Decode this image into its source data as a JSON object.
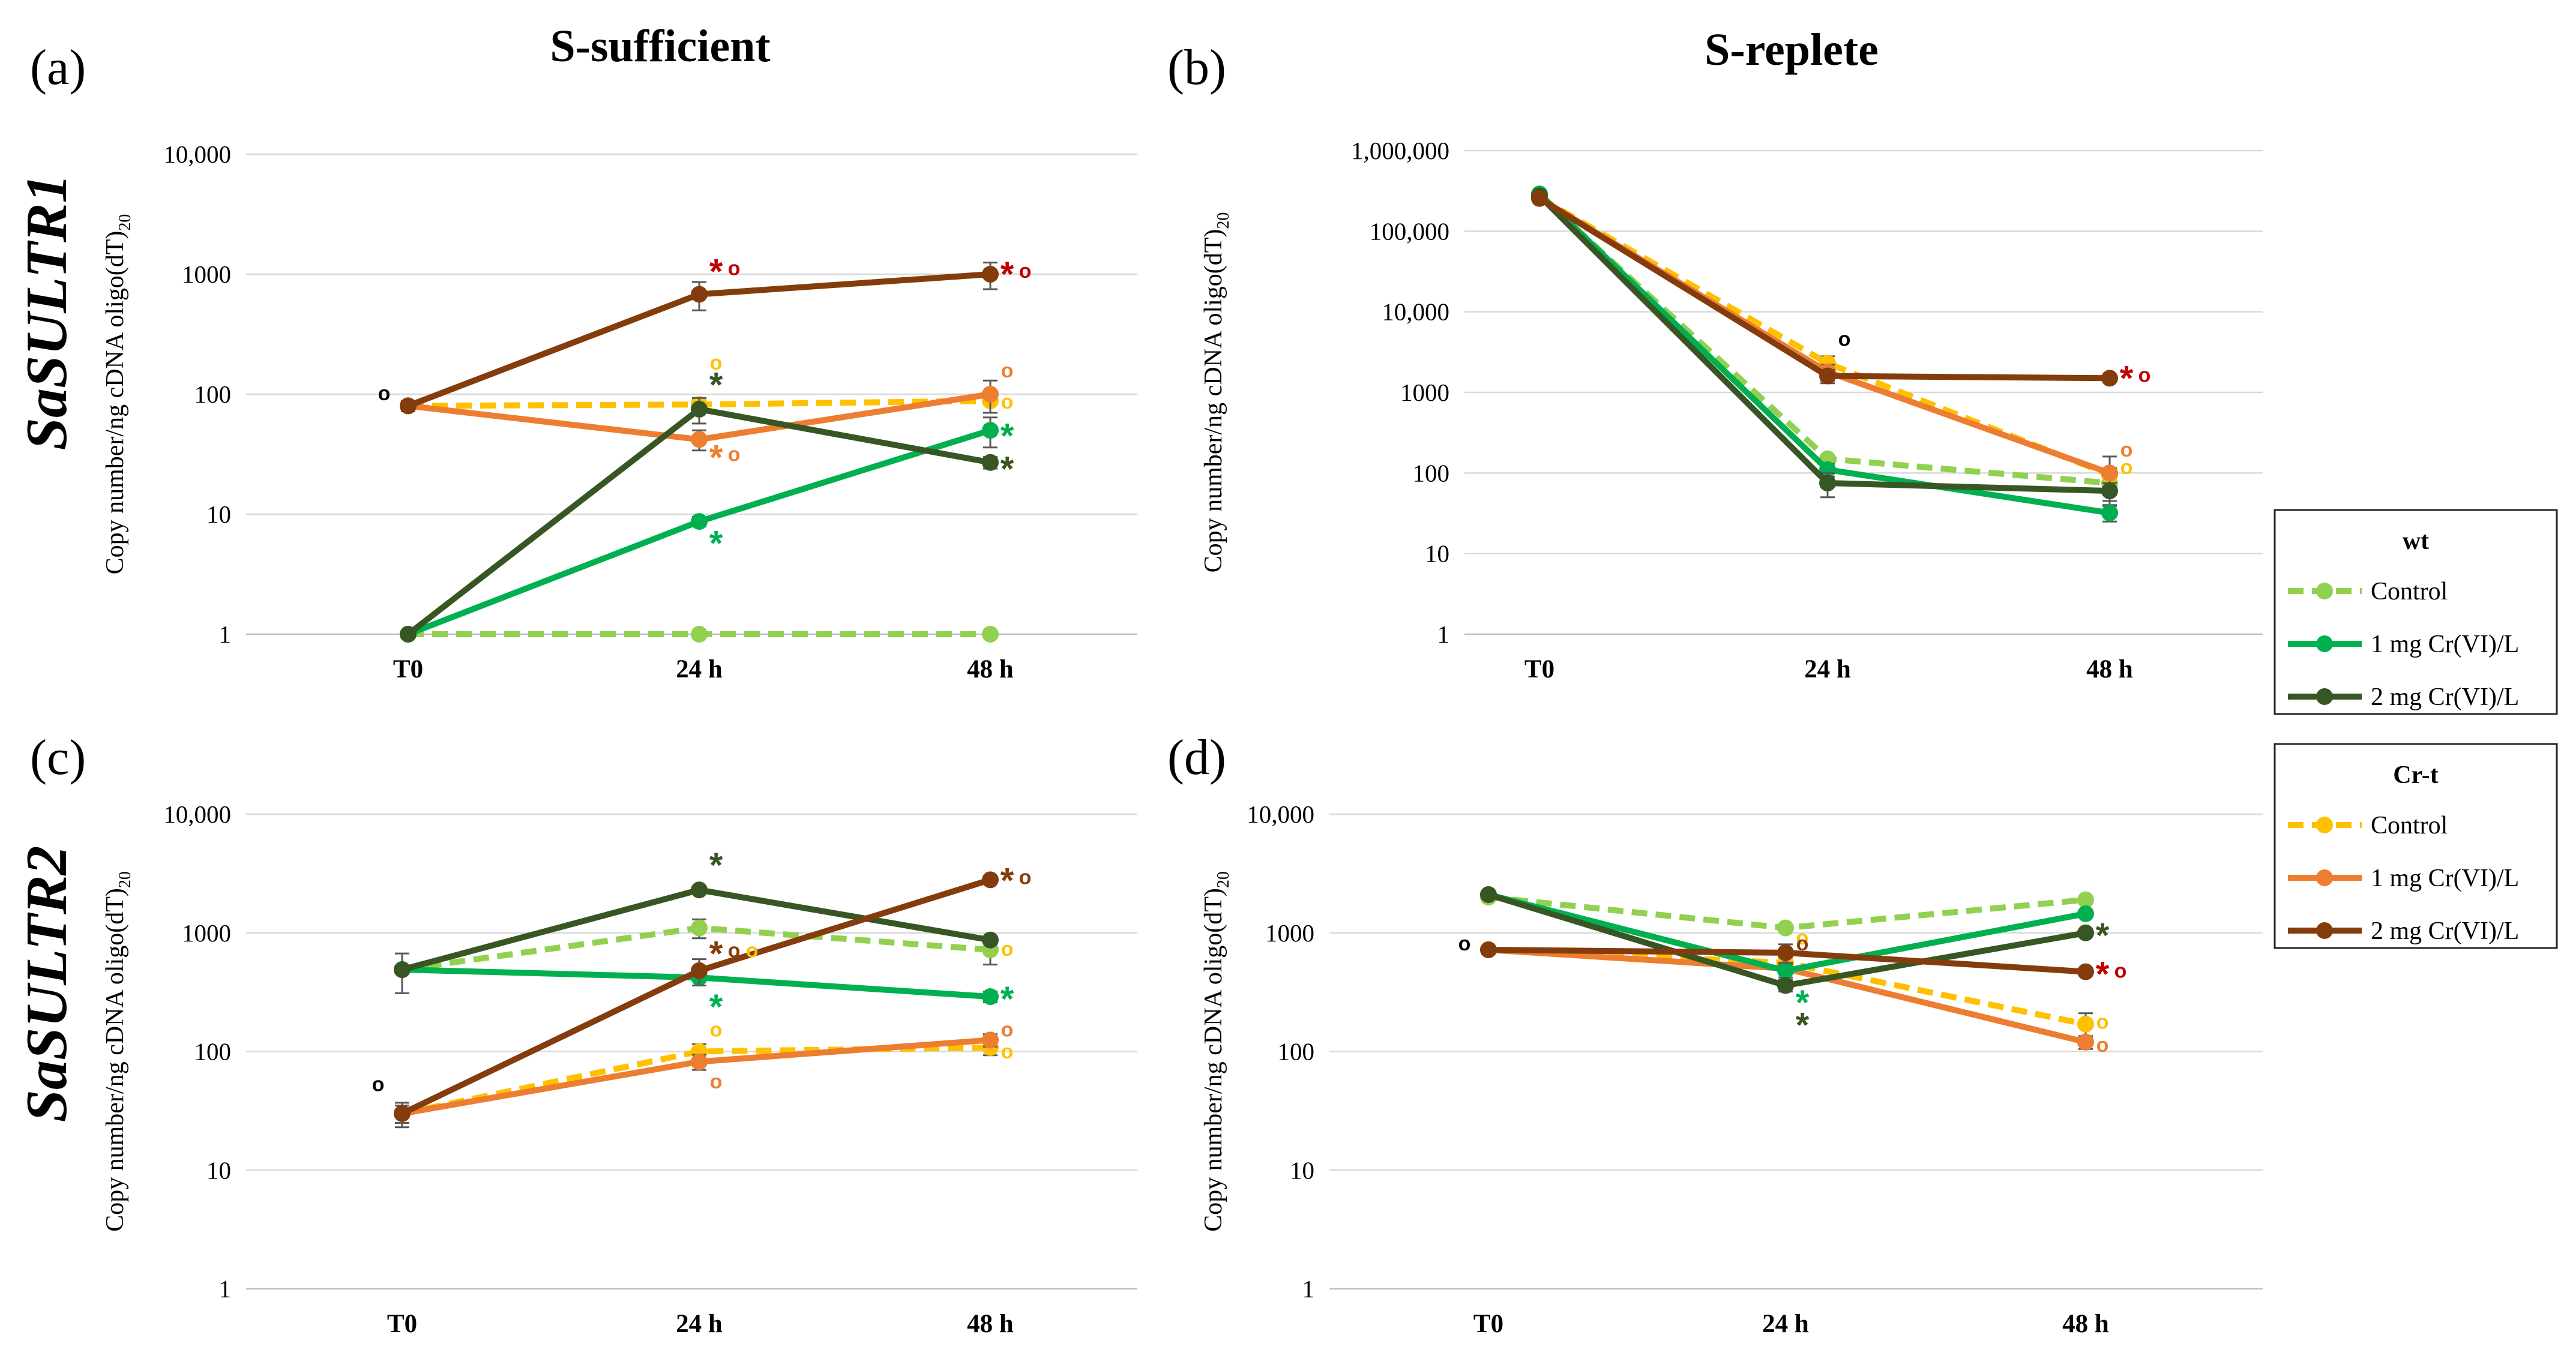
{
  "figure": {
    "column_titles": [
      "S-sufficient",
      "S-replete"
    ],
    "row_titles": [
      "SaSULTR1",
      "SaSULTR2"
    ]
  },
  "colors": {
    "wt_control": "#92d050",
    "wt_1mg": "#00b050",
    "wt_2mg": "#375623",
    "crt_control": "#ffc000",
    "crt_1mg": "#ed7d31",
    "crt_2mg": "#843c0c",
    "asterisk_dark_red": "#c00000",
    "circle_black": "#000000"
  },
  "legend": {
    "groups": [
      {
        "title": "wt",
        "items": [
          {
            "label": "Control",
            "series": "wt_control",
            "dashed": true
          },
          {
            "label": "1 mg Cr(VI)/L",
            "series": "wt_1mg",
            "dashed": false
          },
          {
            "label": "2 mg Cr(VI)/L",
            "series": "wt_2mg",
            "dashed": false
          }
        ]
      },
      {
        "title": "Cr-t",
        "items": [
          {
            "label": "Control",
            "series": "crt_control",
            "dashed": true
          },
          {
            "label": "1 mg Cr(VI)/L",
            "series": "crt_1mg",
            "dashed": false
          },
          {
            "label": "2 mg Cr(VI)/L",
            "series": "crt_2mg",
            "dashed": false
          }
        ]
      }
    ]
  },
  "chart_data": [
    {
      "panel": "(a)",
      "type": "line",
      "yscale": "log",
      "ylim": [
        1,
        10000
      ],
      "yticks": [
        1,
        10,
        100,
        1000,
        10000
      ],
      "ytick_labels": [
        "1",
        "10",
        "100",
        "1000",
        "10,000"
      ],
      "ylabel": "Copy number/ng cDNA oligo(dT)",
      "ylabel_sub": "20",
      "categories": [
        "T0",
        "24 h",
        "48 h"
      ],
      "series": [
        {
          "key": "wt_control",
          "values": [
            1,
            1,
            1
          ],
          "errors": [
            0,
            0,
            0
          ]
        },
        {
          "key": "wt_1mg",
          "values": [
            1,
            8.7,
            50
          ],
          "errors": [
            0,
            0.8,
            14
          ]
        },
        {
          "key": "wt_2mg",
          "values": [
            1,
            75,
            27
          ],
          "errors": [
            0,
            18,
            3
          ]
        },
        {
          "key": "crt_control",
          "values": [
            80,
            82,
            88
          ],
          "errors": [
            8,
            10,
            18
          ]
        },
        {
          "key": "crt_1mg",
          "values": [
            80,
            42,
            100
          ],
          "errors": [
            6,
            8,
            30
          ]
        },
        {
          "key": "crt_2mg",
          "values": [
            80,
            680,
            1000
          ],
          "errors": [
            6,
            180,
            250
          ]
        }
      ],
      "annotations": [
        {
          "t": "o",
          "x": 0,
          "v": 100,
          "c": "circle_black"
        },
        {
          "t": "*",
          "x": 1,
          "v": 1100,
          "c": "asterisk_dark_red"
        },
        {
          "t": "o",
          "x": 1,
          "v": 1100,
          "c": "asterisk_dark_red"
        },
        {
          "t": "o",
          "x": 1,
          "v": 180,
          "c": "crt_control"
        },
        {
          "t": "*",
          "x": 1,
          "v": 125,
          "c": "wt_2mg"
        },
        {
          "t": "*",
          "x": 1,
          "v": 31,
          "c": "crt_1mg"
        },
        {
          "t": "o",
          "x": 1,
          "v": 31,
          "c": "crt_1mg"
        },
        {
          "t": "*",
          "x": 1,
          "v": 6.0,
          "c": "wt_1mg"
        },
        {
          "t": "*",
          "x": 2,
          "v": 1050,
          "c": "asterisk_dark_red"
        },
        {
          "t": "o",
          "x": 2,
          "v": 1050,
          "c": "asterisk_dark_red"
        },
        {
          "t": "o",
          "x": 2,
          "v": 155,
          "c": "crt_1mg"
        },
        {
          "t": "o",
          "x": 2,
          "v": 85,
          "c": "crt_control"
        },
        {
          "t": "*",
          "x": 2,
          "v": 47,
          "c": "wt_1mg"
        },
        {
          "t": "*",
          "x": 2,
          "v": 25,
          "c": "wt_2mg"
        }
      ]
    },
    {
      "panel": "(b)",
      "type": "line",
      "yscale": "log",
      "ylim": [
        1,
        1000000
      ],
      "yticks": [
        1,
        10,
        100,
        1000,
        10000,
        100000,
        1000000
      ],
      "ytick_labels": [
        "1",
        "10",
        "100",
        "1000",
        "10,000",
        "100,000",
        "1,000,000"
      ],
      "ylabel": "Copy number/ng cDNA oligo(dT)",
      "ylabel_sub": "20",
      "categories": [
        "T0",
        "24 h",
        "48 h"
      ],
      "series": [
        {
          "key": "wt_control",
          "values": [
            280000,
            150,
            75
          ],
          "errors": [
            0,
            0,
            0
          ]
        },
        {
          "key": "wt_1mg",
          "values": [
            290000,
            110,
            32
          ],
          "errors": [
            0,
            20,
            7
          ]
        },
        {
          "key": "wt_2mg",
          "values": [
            275000,
            75,
            60
          ],
          "errors": [
            0,
            25,
            15
          ]
        },
        {
          "key": "crt_control",
          "values": [
            260000,
            2300,
            95
          ],
          "errors": [
            0,
            500,
            20
          ]
        },
        {
          "key": "crt_1mg",
          "values": [
            255000,
            1800,
            100
          ],
          "errors": [
            0,
            400,
            60
          ]
        },
        {
          "key": "crt_2mg",
          "values": [
            255000,
            1600,
            1500
          ],
          "errors": [
            0,
            300,
            0
          ]
        }
      ],
      "annotations": [
        {
          "t": "o",
          "x": 1,
          "v": 4500,
          "c": "circle_black"
        },
        {
          "t": "*",
          "x": 2,
          "v": 1600,
          "c": "asterisk_dark_red"
        },
        {
          "t": "o",
          "x": 2,
          "v": 1600,
          "c": "asterisk_dark_red"
        },
        {
          "t": "o",
          "x": 2,
          "v": 190,
          "c": "crt_1mg"
        },
        {
          "t": "o",
          "x": 2,
          "v": 115,
          "c": "crt_control"
        }
      ]
    },
    {
      "panel": "(c)",
      "type": "line",
      "yscale": "log",
      "ylim": [
        1,
        10000
      ],
      "yticks": [
        1,
        10,
        100,
        1000,
        10000
      ],
      "ytick_labels": [
        "1",
        "10",
        "100",
        "1000",
        "10,000"
      ],
      "ylabel": "Copy number/ng cDNA oligo(dT)",
      "ylabel_sub": "20",
      "categories": [
        "T0",
        "24 h",
        "48 h"
      ],
      "series": [
        {
          "key": "wt_control",
          "values": [
            490,
            1100,
            720
          ],
          "errors": [
            0,
            200,
            180
          ]
        },
        {
          "key": "wt_1mg",
          "values": [
            490,
            420,
            290
          ],
          "errors": [
            180,
            60,
            30
          ]
        },
        {
          "key": "wt_2mg",
          "values": [
            490,
            2300,
            870
          ],
          "errors": [
            0,
            0,
            0
          ]
        },
        {
          "key": "crt_control",
          "values": [
            30,
            100,
            108
          ],
          "errors": [
            5,
            15,
            15
          ]
        },
        {
          "key": "crt_1mg",
          "values": [
            30,
            82,
            125
          ],
          "errors": [
            5,
            12,
            15
          ]
        },
        {
          "key": "crt_2mg",
          "values": [
            30,
            480,
            2800
          ],
          "errors": [
            7,
            120,
            0
          ]
        }
      ],
      "annotations": [
        {
          "t": "o",
          "x": 0,
          "v": 52,
          "c": "circle_black"
        },
        {
          "t": "*",
          "x": 1,
          "v": 3900,
          "c": "wt_2mg"
        },
        {
          "t": "*",
          "x": 1,
          "v": 700,
          "c": "crt_2mg"
        },
        {
          "t": "o",
          "x": 1,
          "v": 700,
          "c": "crt_2mg"
        },
        {
          "t": "o",
          "x": 1,
          "v": 700,
          "c": "crt_control"
        },
        {
          "t": "*",
          "x": 1,
          "v": 250,
          "c": "wt_1mg"
        },
        {
          "t": "o",
          "x": 1,
          "v": 150,
          "c": "crt_control"
        },
        {
          "t": "o",
          "x": 1,
          "v": 55,
          "c": "crt_1mg"
        },
        {
          "t": "*",
          "x": 2,
          "v": 2900,
          "c": "crt_2mg"
        },
        {
          "t": "o",
          "x": 2,
          "v": 2900,
          "c": "crt_2mg"
        },
        {
          "t": "o",
          "x": 2,
          "v": 720,
          "c": "crt_control"
        },
        {
          "t": "*",
          "x": 2,
          "v": 290,
          "c": "wt_1mg"
        },
        {
          "t": "o",
          "x": 2,
          "v": 150,
          "c": "crt_1mg"
        },
        {
          "t": "o",
          "x": 2,
          "v": 98,
          "c": "crt_control"
        }
      ]
    },
    {
      "panel": "(d)",
      "type": "line",
      "yscale": "log",
      "ylim": [
        1,
        10000
      ],
      "yticks": [
        1,
        10,
        100,
        1000,
        10000
      ],
      "ytick_labels": [
        "1",
        "10",
        "100",
        "1000",
        "10,000"
      ],
      "ylabel": "Copy number/ng cDNA oligo(dT)",
      "ylabel_sub": "20",
      "categories": [
        "T0",
        "24 h",
        "48 h"
      ],
      "series": [
        {
          "key": "wt_control",
          "values": [
            2000,
            1100,
            1900
          ],
          "errors": [
            0,
            0,
            0
          ]
        },
        {
          "key": "wt_1mg",
          "values": [
            2100,
            480,
            1450
          ],
          "errors": [
            0,
            60,
            0
          ]
        },
        {
          "key": "wt_2mg",
          "values": [
            2100,
            360,
            1000
          ],
          "errors": [
            0,
            40,
            0
          ]
        },
        {
          "key": "crt_control",
          "values": [
            720,
            560,
            170
          ],
          "errors": [
            0,
            60,
            40
          ]
        },
        {
          "key": "crt_1mg",
          "values": [
            720,
            500,
            120
          ],
          "errors": [
            0,
            50,
            15
          ]
        },
        {
          "key": "crt_2mg",
          "values": [
            720,
            680,
            470
          ],
          "errors": [
            0,
            120,
            0
          ]
        }
      ],
      "annotations": [
        {
          "t": "o",
          "x": 0,
          "v": 800,
          "c": "circle_black"
        },
        {
          "t": "o",
          "x": 1,
          "v": 900,
          "c": "crt_control"
        },
        {
          "t": "o",
          "x": 1,
          "v": 800,
          "c": "crt_2mg"
        },
        {
          "t": "*",
          "x": 1,
          "v": 270,
          "c": "wt_1mg"
        },
        {
          "t": "*",
          "x": 1,
          "v": 175,
          "c": "wt_2mg"
        },
        {
          "t": "*",
          "x": 2,
          "v": 1000,
          "c": "wt_2mg"
        },
        {
          "t": "*",
          "x": 2,
          "v": 470,
          "c": "asterisk_dark_red"
        },
        {
          "t": "o",
          "x": 2,
          "v": 470,
          "c": "asterisk_dark_red"
        },
        {
          "t": "o",
          "x": 2,
          "v": 175,
          "c": "crt_control"
        },
        {
          "t": "o",
          "x": 2,
          "v": 112,
          "c": "crt_1mg"
        }
      ]
    }
  ]
}
